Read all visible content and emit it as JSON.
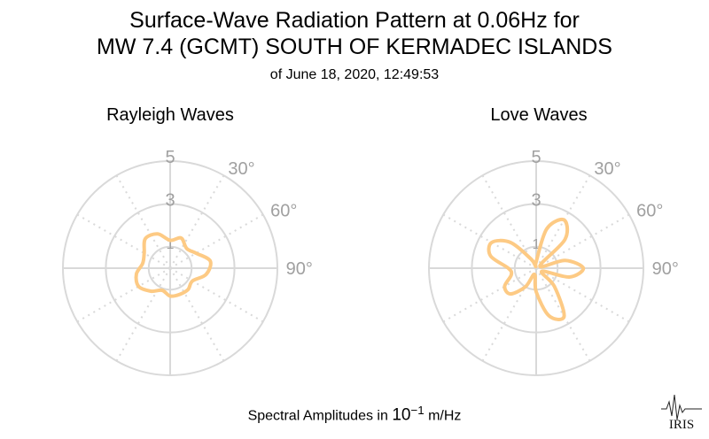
{
  "title": {
    "line1": "Surface-Wave Radiation Pattern at 0.06Hz for",
    "line2": "MW 7.4 (GCMT) SOUTH OF KERMADEC ISLANDS",
    "line3": "of June 18, 2020, 12:49:53"
  },
  "footer": {
    "prefix": "Spectral Amplitudes in ",
    "power": "10",
    "exponent": "−1",
    "unit": " m/Hz"
  },
  "logo_text": "IRIS",
  "colors": {
    "pattern": "#fdca84",
    "grid": "#d9d9d9",
    "tick": "#a0a0a0"
  },
  "chart_data": [
    {
      "type": "polar-line",
      "title": "Rayleigh Waves",
      "radial_ticks": [
        "1",
        "3",
        "5"
      ],
      "radial_range": [
        0,
        5
      ],
      "angular_ticks": [
        "30°",
        "60°",
        "90°"
      ],
      "direction": "clockwise",
      "zero_at": "top",
      "angular_grid_step_deg": 30,
      "series": [
        {
          "theta": [
            0,
            20,
            40,
            60,
            80,
            100,
            120,
            140,
            160,
            180,
            200,
            220,
            240,
            260,
            280,
            300,
            320,
            340,
            360
          ],
          "r": [
            1.3,
            1.5,
            1.2,
            1.4,
            1.9,
            1.7,
            1.2,
            1.3,
            1.3,
            1.3,
            1.1,
            1.4,
            1.7,
            1.6,
            1.3,
            1.4,
            1.8,
            1.7,
            1.3
          ]
        }
      ]
    },
    {
      "type": "polar-line",
      "title": "Love Waves",
      "radial_ticks": [
        "1",
        "3",
        "5"
      ],
      "radial_range": [
        0,
        5
      ],
      "angular_ticks": [
        "30°",
        "60°",
        "90°"
      ],
      "direction": "clockwise",
      "zero_at": "top",
      "angular_grid_step_deg": 30,
      "series": [
        {
          "theta": [
            0,
            15,
            30,
            45,
            60,
            75,
            90,
            105,
            120,
            135,
            150,
            165,
            180,
            195,
            210,
            225,
            240,
            255,
            270,
            285,
            300,
            315,
            330,
            345,
            360
          ],
          "r": [
            0.3,
            1.9,
            2.6,
            1.9,
            0.2,
            1.4,
            2.2,
            1.6,
            0.3,
            1.2,
            2.6,
            2.3,
            1.1,
            0.3,
            1.0,
            1.7,
            1.7,
            1.2,
            1.3,
            2.2,
            2.4,
            1.7,
            0.5,
            0.1,
            0.3
          ]
        }
      ]
    }
  ]
}
